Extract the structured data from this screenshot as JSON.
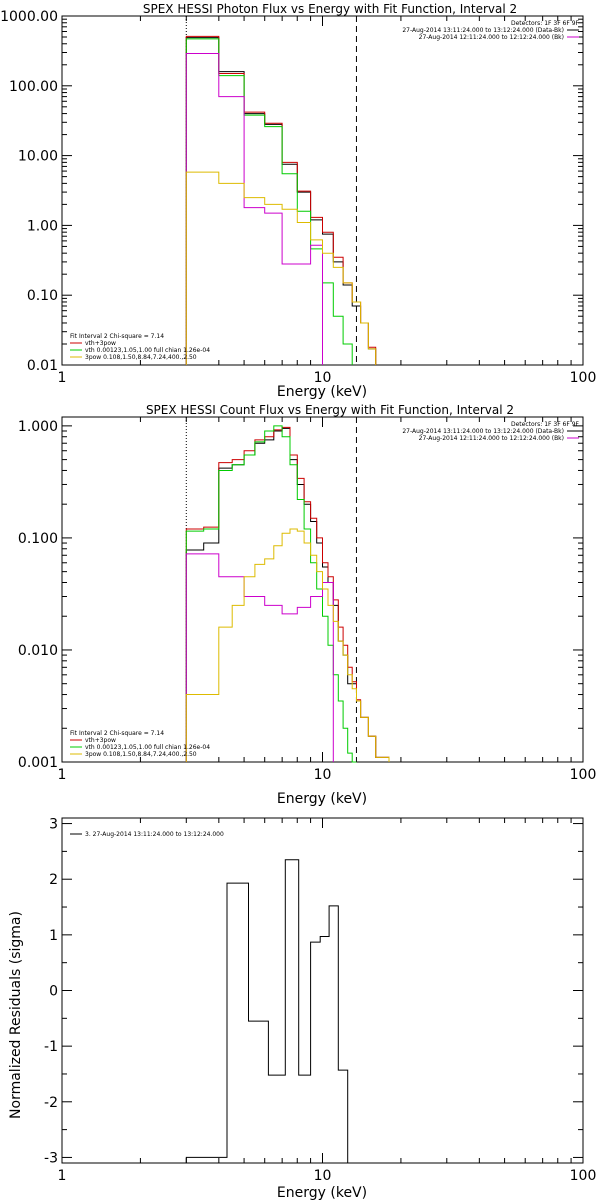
{
  "chart_data": [
    {
      "type": "line",
      "title": "SPEX HESSI Photon Flux vs Energy with Fit Function, Interval 2",
      "xlabel": "Energy (keV)",
      "ylabel": "",
      "x_scale": "log",
      "y_scale": "log",
      "xlim": [
        1,
        100
      ],
      "ylim": [
        0.01,
        1000
      ],
      "x_ticks": [
        {
          "v": 1,
          "label": "1"
        },
        {
          "v": 10,
          "label": "10"
        },
        {
          "v": 100,
          "label": "100"
        }
      ],
      "y_ticks": [
        {
          "v": 0.01,
          "label": "0.01"
        },
        {
          "v": 0.1,
          "label": "0.10"
        },
        {
          "v": 1,
          "label": "1.00"
        },
        {
          "v": 10,
          "label": "10.00"
        },
        {
          "v": 100,
          "label": "100.00"
        },
        {
          "v": 1000,
          "label": "1000.00"
        }
      ],
      "vlines": [
        {
          "x": 3.0,
          "style": "dotted"
        },
        {
          "x": 13.5,
          "style": "dashed"
        }
      ],
      "legend_tr": [
        {
          "text": "Detectors: 1F 3F 6F 9F",
          "color": ""
        },
        {
          "text": "27-Aug-2014 13:11:24.000 to 13:12:24.000 (Data-Bk)",
          "color": "#000000"
        },
        {
          "text": "27-Aug-2014 12:11:24.000 to 12:12:24.000 (Bk)",
          "color": "#cc00cc"
        }
      ],
      "legend_bl": [
        {
          "text": "Fit Interval 2   Chi-square = 7.14",
          "color": ""
        },
        {
          "text": "vth+3pow",
          "color": "#cc0000"
        },
        {
          "text": "vth 0.00123,1.05,1.00  full chian 1.26e-04",
          "color": "#00cc00"
        },
        {
          "text": "3pow 0.108,1.50,8.84,7.24,400.,2.50",
          "color": "#ddbb00"
        }
      ],
      "series": [
        {
          "color": "#000000",
          "edges": [
            3.0,
            4.0,
            5.0,
            6.0,
            7.0,
            8.0,
            9.0,
            10.0,
            11.0,
            12.0,
            13.0,
            14.0,
            15.0,
            16.0
          ],
          "values": [
            490,
            160,
            40,
            28,
            7.5,
            3.0,
            1.2,
            0.75,
            0.3,
            0.14,
            0.07,
            0.04,
            0.017
          ]
        },
        {
          "color": "#cc0000",
          "edges": [
            3.0,
            4.0,
            5.0,
            6.0,
            7.0,
            8.0,
            9.0,
            10.0,
            11.0,
            12.0,
            13.0,
            14.0,
            15.0,
            16.0
          ],
          "values": [
            510,
            150,
            42,
            29,
            8.0,
            3.1,
            1.3,
            0.8,
            0.35,
            0.15,
            0.08,
            0.04,
            0.018
          ]
        },
        {
          "color": "#00cc00",
          "edges": [
            3.0,
            4.0,
            5.0,
            6.0,
            7.0,
            8.0,
            9.0,
            10.0,
            11.0,
            12.0,
            13.0
          ],
          "values": [
            470,
            140,
            38,
            26,
            5.5,
            1.6,
            0.46,
            0.15,
            0.05,
            0.02
          ]
        },
        {
          "color": "#cc00cc",
          "edges": [
            3.0,
            4.0,
            5.0,
            6.0,
            7.0,
            8.0,
            9.0,
            10.0
          ],
          "values": [
            290,
            70,
            1.8,
            1.5,
            0.28,
            0.28,
            0.52
          ]
        },
        {
          "color": "#ddbb00",
          "edges": [
            3.0,
            4.0,
            5.0,
            6.0,
            7.0,
            8.0,
            9.0,
            10.0,
            11.0,
            12.0,
            13.0,
            14.0,
            15.0,
            16.0
          ],
          "values": [
            5.8,
            4.0,
            2.5,
            2.0,
            1.7,
            1.1,
            0.62,
            0.4,
            0.25,
            0.15,
            0.08,
            0.04,
            0.017
          ]
        }
      ]
    },
    {
      "type": "line",
      "title": "SPEX HESSI Count Flux vs Energy with Fit Function, Interval 2",
      "xlabel": "Energy (keV)",
      "ylabel": "",
      "x_scale": "log",
      "y_scale": "log",
      "xlim": [
        1,
        100
      ],
      "ylim": [
        0.001,
        1.2
      ],
      "x_ticks": [
        {
          "v": 1,
          "label": "1"
        },
        {
          "v": 10,
          "label": "10"
        },
        {
          "v": 100,
          "label": "100"
        }
      ],
      "y_ticks": [
        {
          "v": 0.001,
          "label": "0.001"
        },
        {
          "v": 0.01,
          "label": "0.010"
        },
        {
          "v": 0.1,
          "label": "0.100"
        },
        {
          "v": 1,
          "label": "1.000"
        }
      ],
      "vlines": [
        {
          "x": 3.0,
          "style": "dotted"
        },
        {
          "x": 13.5,
          "style": "dashed"
        }
      ],
      "legend_tr": [
        {
          "text": "Detectors: 1F 3F 6F 9F",
          "color": ""
        },
        {
          "text": "27-Aug-2014 13:11:24.000 to 13:12:24.000 (Data-Bk)",
          "color": "#000000"
        },
        {
          "text": "27-Aug-2014 12:11:24.000 to 12:12:24.000 (Bk)",
          "color": "#cc00cc"
        }
      ],
      "legend_bl": [
        {
          "text": "Fit Interval 2   Chi-square = 7.14",
          "color": ""
        },
        {
          "text": "vth+3pow",
          "color": "#cc0000"
        },
        {
          "text": "vth 0.00123,1.05,1.00  full chian 1.26e-04",
          "color": "#00cc00"
        },
        {
          "text": "3pow 0.108,1.50,8.84,7.24,400.,2.50",
          "color": "#ddbb00"
        }
      ],
      "series": [
        {
          "color": "#000000",
          "edges": [
            3.0,
            3.5,
            4.0,
            4.5,
            5.0,
            5.5,
            6.0,
            6.5,
            7.0,
            7.5,
            8.0,
            8.5,
            9.0,
            9.5,
            10.0,
            10.5,
            11.0,
            11.5,
            12.0,
            12.5,
            13.0,
            13.5,
            14.0,
            15.0,
            16.0,
            17.0,
            18.0
          ],
          "values": [
            0.078,
            0.09,
            0.42,
            0.45,
            0.55,
            0.7,
            0.75,
            0.9,
            0.95,
            0.5,
            0.3,
            0.2,
            0.14,
            0.09,
            0.055,
            0.04,
            0.025,
            0.012,
            0.009,
            0.005,
            0.005,
            0.0035,
            0.0025,
            0.0017,
            0.0011,
            0.0011
          ]
        },
        {
          "color": "#cc0000",
          "edges": [
            3.0,
            3.5,
            4.0,
            4.5,
            5.0,
            5.5,
            6.0,
            6.5,
            7.0,
            7.5,
            8.0,
            8.5,
            9.0,
            9.5,
            10.0,
            10.5,
            11.0,
            11.5,
            12.0,
            12.5,
            13.0,
            13.5,
            14.0,
            15.0,
            16.0,
            17.0,
            18.0
          ],
          "values": [
            0.12,
            0.125,
            0.47,
            0.5,
            0.6,
            0.75,
            0.8,
            0.92,
            0.97,
            0.55,
            0.34,
            0.21,
            0.15,
            0.1,
            0.06,
            0.045,
            0.028,
            0.016,
            0.011,
            0.007,
            0.0052,
            0.0036,
            0.0025,
            0.0017,
            0.0011,
            0.0011
          ]
        },
        {
          "color": "#00cc00",
          "edges": [
            3.0,
            3.5,
            4.0,
            4.5,
            5.0,
            5.5,
            6.0,
            6.5,
            7.0,
            7.5,
            8.0,
            8.5,
            9.0,
            9.5,
            10.0,
            10.5,
            11.0,
            11.5,
            12.0,
            12.5,
            13.0,
            13.5
          ],
          "values": [
            0.115,
            0.12,
            0.4,
            0.45,
            0.55,
            0.72,
            0.9,
            1.0,
            0.8,
            0.45,
            0.22,
            0.12,
            0.06,
            0.035,
            0.02,
            0.011,
            0.006,
            0.0035,
            0.002,
            0.0012,
            0.001
          ]
        },
        {
          "color": "#cc00cc",
          "edges": [
            3.0,
            4.0,
            5.0,
            6.0,
            7.0,
            8.0,
            9.0,
            10.0,
            11.0
          ],
          "values": [
            0.072,
            0.045,
            0.03,
            0.025,
            0.021,
            0.024,
            0.03,
            0.04
          ]
        },
        {
          "color": "#ddbb00",
          "edges": [
            3.0,
            4.0,
            4.5,
            5.0,
            5.5,
            6.0,
            6.5,
            7.0,
            7.5,
            8.0,
            8.5,
            9.0,
            9.5,
            10.0,
            10.5,
            11.0,
            11.5,
            12.0,
            12.5,
            13.0,
            13.5,
            14.0,
            15.0,
            16.0,
            17.0,
            18.0
          ],
          "values": [
            0.004,
            0.016,
            0.025,
            0.045,
            0.058,
            0.065,
            0.085,
            0.11,
            0.12,
            0.115,
            0.09,
            0.07,
            0.05,
            0.035,
            0.025,
            0.018,
            0.012,
            0.009,
            0.006,
            0.0045,
            0.0035,
            0.0025,
            0.0017,
            0.0011,
            0.0011
          ]
        }
      ]
    },
    {
      "type": "line",
      "title": "",
      "xlabel": "Energy (keV)",
      "ylabel": "Normalized Residuals (sigma)",
      "x_scale": "log",
      "y_scale": "linear",
      "xlim": [
        1,
        100
      ],
      "ylim": [
        -3.1,
        3.1
      ],
      "x_ticks": [
        {
          "v": 1,
          "label": "1"
        },
        {
          "v": 10,
          "label": "10"
        },
        {
          "v": 100,
          "label": "100"
        }
      ],
      "y_ticks": [
        {
          "v": -3,
          "label": "-3"
        },
        {
          "v": -2,
          "label": "-2"
        },
        {
          "v": -1,
          "label": "-1"
        },
        {
          "v": 0,
          "label": "0"
        },
        {
          "v": 1,
          "label": "1"
        },
        {
          "v": 2,
          "label": "2"
        },
        {
          "v": 3,
          "label": "3"
        }
      ],
      "vlines": [],
      "legend_tr": [],
      "legend_tl": [
        {
          "text": "3. 27-Aug-2014 13:11:24.000 to 13:12:24.000",
          "color": "#000000"
        }
      ],
      "legend_bl": [],
      "series": [
        {
          "color": "#000000",
          "edges": [
            3.0,
            4.3,
            5.2,
            6.2,
            7.2,
            8.1,
            9.0,
            9.8,
            10.6,
            11.5,
            12.5,
            13.5
          ],
          "values": [
            -3.0,
            1.93,
            -0.55,
            -1.52,
            2.35,
            -1.52,
            0.87,
            0.97,
            1.52,
            -1.43,
            -3.1
          ]
        }
      ]
    }
  ]
}
